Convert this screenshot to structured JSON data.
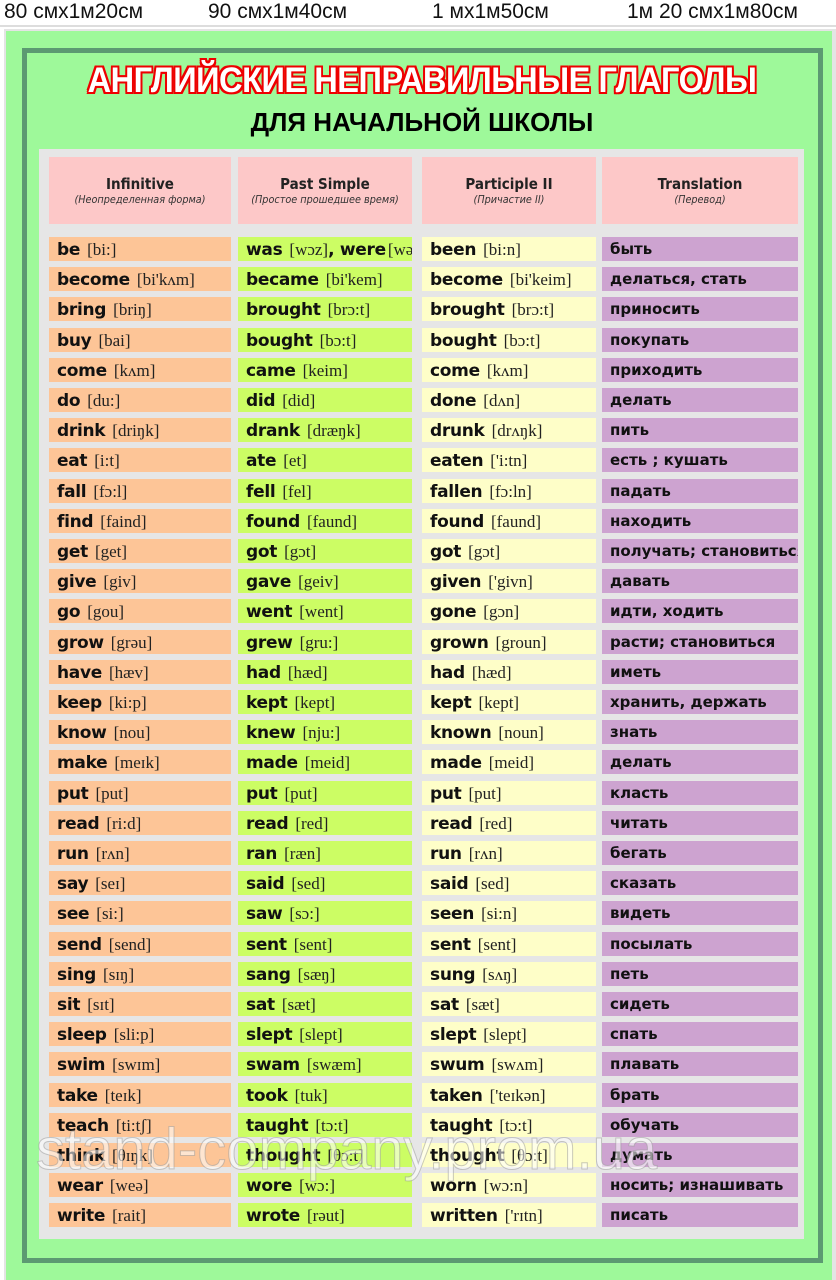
{
  "sizes": [
    "80 смх1м20см",
    "90 смх1м40см",
    "1 мх1м50см",
    "1м 20 смх1м80см"
  ],
  "title": "АНГЛИЙСКИЕ НЕПРАВИЛЬНЫЕ ГЛАГОЛЫ",
  "subtitle": "ДЛЯ НАЧАЛЬНОЙ ШКОЛЫ",
  "headers": [
    {
      "title": "Infinitive",
      "sub": "(Неопределенная форма)"
    },
    {
      "title": "Past Simple",
      "sub": "(Простое прошедшее время)"
    },
    {
      "title": "Participle II",
      "sub": "(Причастие II)"
    },
    {
      "title": "Translation",
      "sub": "(Перевод)"
    }
  ],
  "rows": [
    {
      "inf": [
        "be",
        "[bi:]"
      ],
      "past": [
        "was",
        "[wɔz]",
        ", were",
        "[wə:]"
      ],
      "part": [
        "been",
        "[bi:n]"
      ],
      "tr": "быть"
    },
    {
      "inf": [
        "become",
        "[bi'kʌm]"
      ],
      "past": [
        "became",
        "[bi'kem]"
      ],
      "part": [
        "become",
        "[bi'keim]"
      ],
      "tr": "делаться, стать"
    },
    {
      "inf": [
        "bring",
        "[briŋ]"
      ],
      "past": [
        "brought",
        "[brɔ:t]"
      ],
      "part": [
        "brought",
        "[brɔ:t]"
      ],
      "tr": "приносить"
    },
    {
      "inf": [
        "buy",
        "[bai]"
      ],
      "past": [
        "bought",
        "[bɔ:t]"
      ],
      "part": [
        "bought",
        "[bɔ:t]"
      ],
      "tr": "покупать"
    },
    {
      "inf": [
        "come",
        "[kʌm]"
      ],
      "past": [
        "came",
        "[keim]"
      ],
      "part": [
        "come",
        "[kʌm]"
      ],
      "tr": "приходить"
    },
    {
      "inf": [
        "do",
        "[du:]"
      ],
      "past": [
        "did",
        "[did]"
      ],
      "part": [
        "done",
        "[dʌn]"
      ],
      "tr": "делать"
    },
    {
      "inf": [
        "drink",
        "[driŋk]"
      ],
      "past": [
        "drank",
        "[dræŋk]"
      ],
      "part": [
        "drunk",
        "[drʌŋk]"
      ],
      "tr": "пить"
    },
    {
      "inf": [
        "eat",
        "[i:t]"
      ],
      "past": [
        "ate",
        "[et]"
      ],
      "part": [
        "eaten",
        "['i:tn]"
      ],
      "tr": "есть ; кушать"
    },
    {
      "inf": [
        "fall",
        "[fɔ:l]"
      ],
      "past": [
        "fell",
        "[fel]"
      ],
      "part": [
        "fallen",
        "[fɔ:ln]"
      ],
      "tr": "падать"
    },
    {
      "inf": [
        "find",
        "[faind]"
      ],
      "past": [
        "found",
        "[faund]"
      ],
      "part": [
        "found",
        "[faund]"
      ],
      "tr": "находить"
    },
    {
      "inf": [
        "get",
        "[get]"
      ],
      "past": [
        "got",
        "[gɔt]"
      ],
      "part": [
        "got",
        "[gɔt]"
      ],
      "tr": "получать; становиться"
    },
    {
      "inf": [
        "give",
        "[giv]"
      ],
      "past": [
        "gave",
        "[geiv]"
      ],
      "part": [
        "given",
        "['givn]"
      ],
      "tr": "давать"
    },
    {
      "inf": [
        "go",
        "[gou]"
      ],
      "past": [
        "went",
        "[went]"
      ],
      "part": [
        "gone",
        "[gɔn]"
      ],
      "tr": "идти, ходить"
    },
    {
      "inf": [
        "grow",
        "[grəu]"
      ],
      "past": [
        "grew",
        "[gru:]"
      ],
      "part": [
        "grown",
        "[groun]"
      ],
      "tr": "расти; становиться"
    },
    {
      "inf": [
        "have",
        "[hæv]"
      ],
      "past": [
        "had",
        "[hæd]"
      ],
      "part": [
        "had",
        "[hæd]"
      ],
      "tr": "иметь"
    },
    {
      "inf": [
        "keep",
        "[ki:p]"
      ],
      "past": [
        "kept",
        "[kept]"
      ],
      "part": [
        "kept",
        "[kept]"
      ],
      "tr": "хранить, держать"
    },
    {
      "inf": [
        "know",
        "[nou]"
      ],
      "past": [
        "knew",
        "[nju:]"
      ],
      "part": [
        "known",
        "[noun]"
      ],
      "tr": "знать"
    },
    {
      "inf": [
        "make",
        "[meɪk]"
      ],
      "past": [
        "made",
        "[meid]"
      ],
      "part": [
        "made",
        "[meid]"
      ],
      "tr": "делать"
    },
    {
      "inf": [
        "put",
        "[put]"
      ],
      "past": [
        "put",
        "[put]"
      ],
      "part": [
        "put",
        "[put]"
      ],
      "tr": "класть"
    },
    {
      "inf": [
        "read",
        "[ri:d]"
      ],
      "past": [
        "read",
        "[red]"
      ],
      "part": [
        "read",
        "[red]"
      ],
      "tr": "читать"
    },
    {
      "inf": [
        "run",
        "[rʌn]"
      ],
      "past": [
        "ran",
        "[ræn]"
      ],
      "part": [
        "run",
        "[rʌn]"
      ],
      "tr": "бегать"
    },
    {
      "inf": [
        "say",
        "[seɪ]"
      ],
      "past": [
        "said",
        "[sed]"
      ],
      "part": [
        "said",
        "[sed]"
      ],
      "tr": "сказать"
    },
    {
      "inf": [
        "see",
        "[si:]"
      ],
      "past": [
        "saw",
        "[sɔ:]"
      ],
      "part": [
        "seen",
        "[si:n]"
      ],
      "tr": "видеть"
    },
    {
      "inf": [
        "send",
        "[send]"
      ],
      "past": [
        "sent",
        "[sent]"
      ],
      "part": [
        "sent",
        "[sent]"
      ],
      "tr": "посылать"
    },
    {
      "inf": [
        "sing",
        "[sɪŋ]"
      ],
      "past": [
        "sang",
        "[sæŋ]"
      ],
      "part": [
        "sung",
        "[sʌŋ]"
      ],
      "tr": "петь"
    },
    {
      "inf": [
        "sit",
        "[sɪt]"
      ],
      "past": [
        "sat",
        "[sæt]"
      ],
      "part": [
        "sat",
        "[sæt]"
      ],
      "tr": "сидеть"
    },
    {
      "inf": [
        "sleep",
        "[sli:p]"
      ],
      "past": [
        "slept",
        "[slept]"
      ],
      "part": [
        "slept",
        "[slept]"
      ],
      "tr": "спать"
    },
    {
      "inf": [
        "swim",
        "[swɪm]"
      ],
      "past": [
        "swam",
        "[swæm]"
      ],
      "part": [
        "swum",
        "[swʌm]"
      ],
      "tr": "плавать"
    },
    {
      "inf": [
        "take",
        "[teɪk]"
      ],
      "past": [
        "took",
        "[tuk]"
      ],
      "part": [
        "taken",
        "['teɪkən]"
      ],
      "tr": "брать"
    },
    {
      "inf": [
        "teach",
        "[ti:tʃ]"
      ],
      "past": [
        "taught",
        "[tɔ:t]"
      ],
      "part": [
        "taught",
        "[tɔ:t]"
      ],
      "tr": "обучать"
    },
    {
      "inf": [
        "think",
        "[θɪŋk]"
      ],
      "past": [
        "thought",
        "[θɔ:t]"
      ],
      "part": [
        "thought",
        "[θɔ:t]"
      ],
      "tr": "думать"
    },
    {
      "inf": [
        "wear",
        "[weə]"
      ],
      "past": [
        "wore",
        "[wɔ:]"
      ],
      "part": [
        "worn",
        "[wɔ:n]"
      ],
      "tr": "носить; изнашивать"
    },
    {
      "inf": [
        "write",
        "[rait]"
      ],
      "past": [
        "wrote",
        "[rəut]"
      ],
      "part": [
        "written",
        "['rɪtn]"
      ],
      "tr": "писать"
    }
  ],
  "watermark": "stand-company.prom.ua",
  "colors": {
    "infinitive": "#fdc597",
    "past": "#ccfd64",
    "participle": "#fefec8",
    "translation": "#cda3d0",
    "header": "#fdc8c8",
    "background": "#9ef99a",
    "frame": "#5c9a72",
    "title": "#e00000"
  }
}
